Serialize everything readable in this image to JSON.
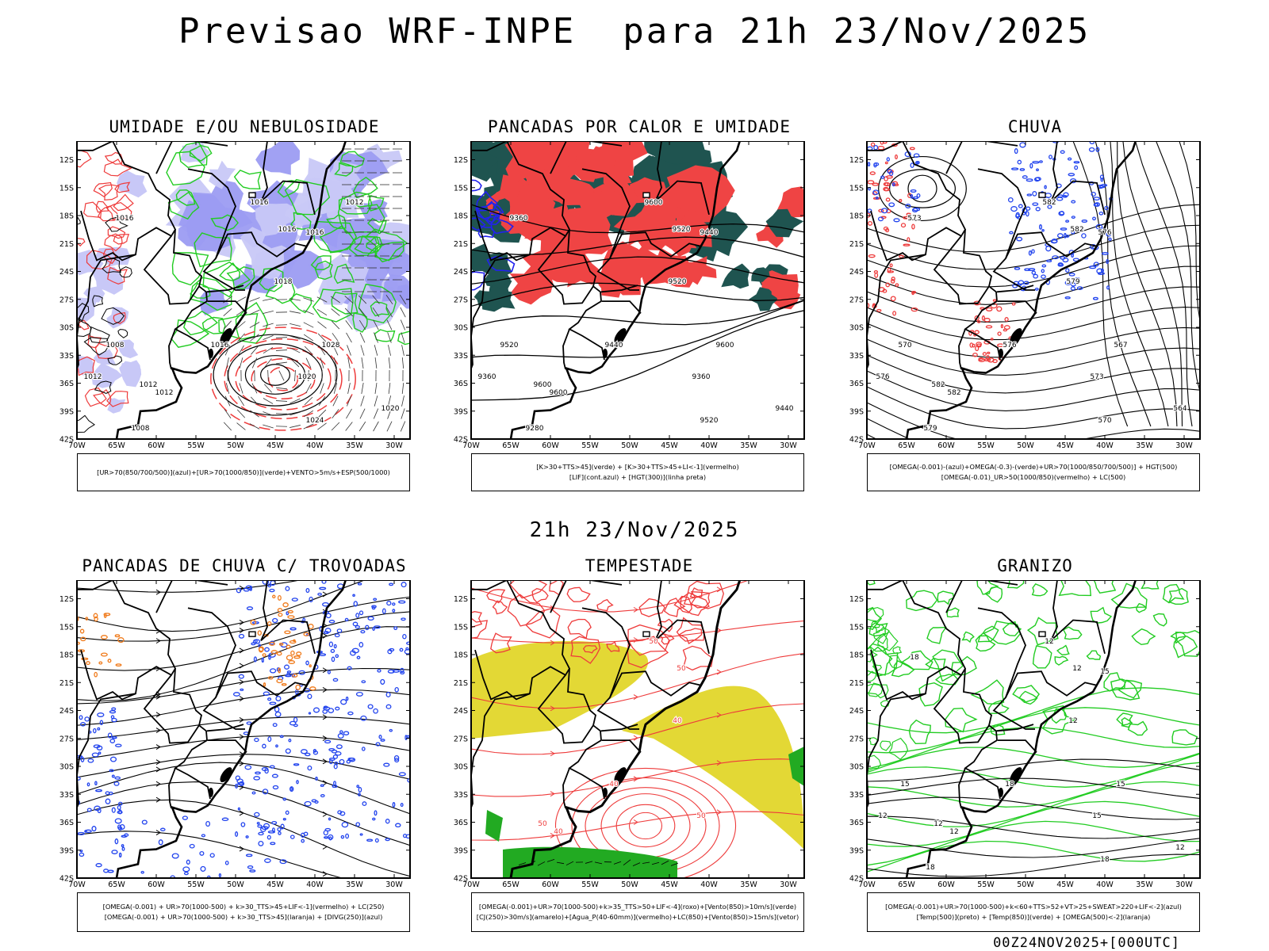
{
  "main_title": "Previsao WRF-INPE  para 21h 23/Nov/2025",
  "mid_time": "21h 23/Nov/2025",
  "footer": "00Z24NOV2025+[000UTC]",
  "lat_labels": [
    "12S",
    "15S",
    "18S",
    "21S",
    "24S",
    "27S",
    "30S",
    "33S",
    "36S",
    "39S",
    "42S"
  ],
  "lon_labels": [
    "70W",
    "65W",
    "60W",
    "55W",
    "50W",
    "45W",
    "40W",
    "35W",
    "30W"
  ],
  "panels": [
    {
      "title": "UMIDADE E/OU NEBULOSIDADE",
      "legend": [
        "[UR>70(850/700/500)](azul)+[UR>70(1000/850)](verde)+VENTO>5m/s+ESP(500/1000)"
      ],
      "contour_labels": [
        "1012",
        "1016",
        "1012",
        "1016",
        "1018",
        "1016",
        "1020",
        "1024",
        "1028",
        "1020",
        "1012",
        "1008",
        "1016",
        "1016",
        "1008",
        "1012"
      ],
      "colors": {
        "fill": "#9c9cf2",
        "fill_light": "#c8c8f7",
        "line1": "#22cc22",
        "line2": "#ee3b3b",
        "line3": "#000000"
      }
    },
    {
      "title": "PANCADAS POR CALOR E UMIDADE",
      "legend": [
        "[K>30+TTS>45](verde) + [K>30+TTS>45+LI<-1](vermelho)",
        "[LIF](cont.azul) + [HGT(300)](linha preta)"
      ],
      "contour_labels": [
        "9600",
        "9600",
        "9600",
        "9520",
        "9520",
        "9440",
        "9360",
        "9520",
        "9600",
        "9440",
        "9360",
        "9280",
        "9440",
        "9360",
        "9520"
      ],
      "colors": {
        "fill": "#ef4444",
        "fill2": "#1f5450",
        "line1": "#2222ee",
        "line3": "#000000"
      }
    },
    {
      "title": "CHUVA",
      "legend": [
        "[OMEGA(-0.001)-(azul)+OMEGA(-0.3)-(verde)+UR>70(1000/850/700/500)] + HGT(500)",
        "[OMEGA(-0.01)_UR>50(1000/850)(vermelho) + LC(500)"
      ],
      "contour_labels": [
        "582",
        "582",
        "582",
        "582",
        "579",
        "576",
        "573",
        "570",
        "567",
        "564",
        "576",
        "579",
        "576",
        "573",
        "570"
      ],
      "colors": {
        "line1": "#2244ee",
        "line2": "#ee3b3b",
        "line3": "#000000"
      }
    },
    {
      "title": "PANCADAS DE CHUVA C/ TROVOADAS",
      "legend": [
        "[OMEGA(-0.001) + UR>70(1000-500) + k>30_TTS>45+LIF<-1](vermelho) + LC(250)",
        "[OMEGA(-0.001) + UR>70(1000-500) + k>30_TTS>45](laranja) + [DIVG(250)](azul)"
      ],
      "contour_labels": [],
      "colors": {
        "line1": "#2244ee",
        "line2": "#f07a1a",
        "line3": "#000000"
      }
    },
    {
      "title": "TEMPESTADE",
      "legend": [
        "[OMEGA(-0.001)+UR>70(1000-500)+k>35_TTS>50+LIF<-4](roxo)+[Vento(850)>10m/s](verde)",
        "[CJ(250)>30m/s](amarelo)+[Agua_P(40-60mm)](vermelho)+LC(850)+[Vento(850)>15m/s](vetor)"
      ],
      "contour_labels": [
        "50",
        "50",
        "40",
        "50",
        "40",
        "40",
        "50"
      ],
      "colors": {
        "fill": "#e3d835",
        "line1": "#ee3b3b",
        "line2": "#22aa22",
        "line3": "#000000"
      }
    },
    {
      "title": "GRANIZO",
      "legend": [
        "[OMEGA(-0.001)+UR>70(1000-500)+k<60+TTS>52+VT>25+SWEAT>220+LIF<-2](azul)",
        "[Temp(500)](preto) + [Temp(850)](verde) + [OMEGA(500)<-2](laranja)"
      ],
      "contour_labels": [
        "12",
        "12",
        "12",
        "12",
        "12",
        "18",
        "15",
        "18",
        "15",
        "12",
        "12",
        "18",
        "15",
        "18",
        "15"
      ],
      "colors": {
        "line1": "#22cc22",
        "line3": "#000000"
      }
    }
  ]
}
